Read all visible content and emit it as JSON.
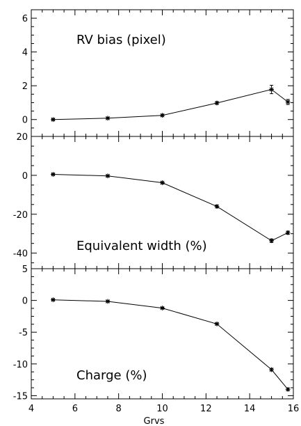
{
  "chart_data": [
    {
      "type": "line",
      "annotation": "RV bias (pixel)",
      "x": [
        5,
        7.5,
        10,
        12.5,
        15,
        15.75
      ],
      "y": [
        0.0,
        0.08,
        0.25,
        0.98,
        1.78,
        1.04
      ],
      "yerr": [
        0.05,
        0.05,
        0.06,
        0.08,
        0.25,
        0.15
      ],
      "xlim": [
        4,
        16
      ],
      "ylim": [
        -1,
        6.5
      ],
      "yticks": [
        0,
        2,
        4,
        6
      ],
      "ytick_labels": [
        "0",
        "2",
        "4",
        "6"
      ]
    },
    {
      "type": "line",
      "annotation": "Equivalent width (%)",
      "x": [
        5,
        7.5,
        10,
        12.5,
        15,
        15.75
      ],
      "y": [
        0.5,
        -0.3,
        -3.8,
        -16.0,
        -33.6,
        -29.5
      ],
      "yerr": [
        0.4,
        0.4,
        0.5,
        0.7,
        0.9,
        0.8
      ],
      "xlim": [
        4,
        16
      ],
      "ylim": [
        -48,
        20
      ],
      "yticks": [
        -40,
        -20,
        0,
        20
      ],
      "ytick_labels": [
        "-40",
        "-20",
        "0",
        "20"
      ]
    },
    {
      "type": "line",
      "annotation": "Charge (%)",
      "x": [
        5,
        7.5,
        10,
        12.5,
        15,
        15.75
      ],
      "y": [
        0.1,
        -0.15,
        -1.2,
        -3.7,
        -10.9,
        -14.0
      ],
      "yerr": [
        0.1,
        0.1,
        0.12,
        0.15,
        0.2,
        0.2
      ],
      "xlim": [
        4,
        16
      ],
      "ylim": [
        -15.5,
        5
      ],
      "yticks": [
        -15,
        -10,
        -5,
        0,
        5
      ],
      "ytick_labels": [
        "-15",
        "-10",
        "-5",
        "0",
        "5"
      ]
    }
  ],
  "shared_x": {
    "label": "Grvs",
    "ticks": [
      4,
      6,
      8,
      10,
      12,
      14,
      16
    ],
    "tick_labels": [
      "4",
      "6",
      "8",
      "10",
      "12",
      "14",
      "16"
    ]
  }
}
